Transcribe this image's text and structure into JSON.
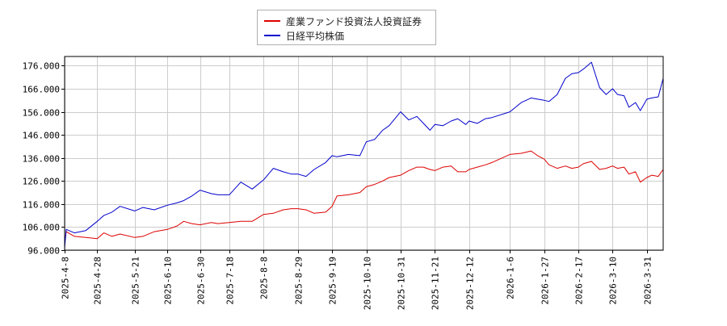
{
  "chart_data": {
    "type": "line",
    "title": "",
    "xlabel": "",
    "ylabel": "",
    "ylim": [
      96000,
      180000
    ],
    "yticks": [
      "96.000",
      "106.000",
      "116.000",
      "126.000",
      "136.000",
      "146.000",
      "156.000",
      "166.000",
      "176.000"
    ],
    "ytick_values": [
      96000,
      106000,
      116000,
      126000,
      136000,
      146000,
      156000,
      166000,
      176000
    ],
    "xlim": [
      "2025-04-08",
      "2026-04-10"
    ],
    "xticks": [
      "2025-4-8",
      "2025-4-28",
      "2025-5-21",
      "2025-6-10",
      "2025-6-30",
      "2025-7-18",
      "2025-8-8",
      "2025-8-29",
      "2025-9-19",
      "2025-10-10",
      "2025-10-31",
      "2025-11-21",
      "2025-12-12",
      "2026-1-6",
      "2026-1-27",
      "2026-2-17",
      "2026-3-10",
      "2026-3-31"
    ],
    "xtick_dates": [
      "2025-04-08",
      "2025-04-28",
      "2025-05-21",
      "2025-06-10",
      "2025-06-30",
      "2025-07-18",
      "2025-08-08",
      "2025-08-29",
      "2025-09-19",
      "2025-10-10",
      "2025-10-31",
      "2025-11-21",
      "2025-12-12",
      "2026-01-06",
      "2026-01-27",
      "2026-02-17",
      "2026-03-10",
      "2026-03-31"
    ],
    "grid": true,
    "legend_position": "top-center",
    "series": [
      {
        "name": "産業ファンド投資法人投資証券",
        "color": "#dd0000",
        "points": [
          [
            "2025-04-08",
            99000
          ],
          [
            "2025-04-09",
            104000
          ],
          [
            "2025-04-14",
            102000
          ],
          [
            "2025-04-21",
            101500
          ],
          [
            "2025-04-28",
            101000
          ],
          [
            "2025-05-02",
            103500
          ],
          [
            "2025-05-07",
            102000
          ],
          [
            "2025-05-12",
            103000
          ],
          [
            "2025-05-21",
            101500
          ],
          [
            "2025-05-26",
            102000
          ],
          [
            "2025-06-02",
            104000
          ],
          [
            "2025-06-10",
            105000
          ],
          [
            "2025-06-16",
            106500
          ],
          [
            "2025-06-20",
            108500
          ],
          [
            "2025-06-25",
            107500
          ],
          [
            "2025-06-30",
            107000
          ],
          [
            "2025-07-07",
            108000
          ],
          [
            "2025-07-11",
            107500
          ],
          [
            "2025-07-18",
            108000
          ],
          [
            "2025-07-25",
            108500
          ],
          [
            "2025-08-01",
            108500
          ],
          [
            "2025-08-08",
            111500
          ],
          [
            "2025-08-14",
            112000
          ],
          [
            "2025-08-20",
            113500
          ],
          [
            "2025-08-25",
            114000
          ],
          [
            "2025-08-29",
            114000
          ],
          [
            "2025-09-03",
            113500
          ],
          [
            "2025-09-08",
            112000
          ],
          [
            "2025-09-15",
            112500
          ],
          [
            "2025-09-19",
            115000
          ],
          [
            "2025-09-22",
            119500
          ],
          [
            "2025-09-29",
            120000
          ],
          [
            "2025-10-06",
            121000
          ],
          [
            "2025-10-10",
            123500
          ],
          [
            "2025-10-15",
            124500
          ],
          [
            "2025-10-20",
            126000
          ],
          [
            "2025-10-24",
            127500
          ],
          [
            "2025-10-31",
            128500
          ],
          [
            "2025-11-05",
            130500
          ],
          [
            "2025-11-10",
            132000
          ],
          [
            "2025-11-14",
            132000
          ],
          [
            "2025-11-18",
            131000
          ],
          [
            "2025-11-21",
            130500
          ],
          [
            "2025-11-26",
            132000
          ],
          [
            "2025-12-01",
            132500
          ],
          [
            "2025-12-05",
            130000
          ],
          [
            "2025-12-10",
            130000
          ],
          [
            "2025-12-12",
            131000
          ],
          [
            "2025-12-17",
            132000
          ],
          [
            "2025-12-22",
            133000
          ],
          [
            "2025-12-26",
            134000
          ],
          [
            "2026-01-06",
            137500
          ],
          [
            "2026-01-13",
            138000
          ],
          [
            "2026-01-19",
            139000
          ],
          [
            "2026-01-23",
            137000
          ],
          [
            "2026-01-27",
            135500
          ],
          [
            "2026-01-30",
            133000
          ],
          [
            "2026-02-04",
            131500
          ],
          [
            "2026-02-09",
            132500
          ],
          [
            "2026-02-13",
            131500
          ],
          [
            "2026-02-17",
            132000
          ],
          [
            "2026-02-20",
            133500
          ],
          [
            "2026-02-25",
            134500
          ],
          [
            "2026-03-02",
            131000
          ],
          [
            "2026-03-06",
            131500
          ],
          [
            "2026-03-10",
            132500
          ],
          [
            "2026-03-13",
            131500
          ],
          [
            "2026-03-17",
            132000
          ],
          [
            "2026-03-20",
            129000
          ],
          [
            "2026-03-24",
            130000
          ],
          [
            "2026-03-27",
            125500
          ],
          [
            "2026-03-31",
            127500
          ],
          [
            "2026-04-03",
            128500
          ],
          [
            "2026-04-07",
            128000
          ],
          [
            "2026-04-10",
            131000
          ]
        ]
      },
      {
        "name": "日経平均株価",
        "color": "#0000cc",
        "points": [
          [
            "2025-04-08",
            97000
          ],
          [
            "2025-04-09",
            105000
          ],
          [
            "2025-04-14",
            103500
          ],
          [
            "2025-04-21",
            104500
          ],
          [
            "2025-04-28",
            108500
          ],
          [
            "2025-05-02",
            111000
          ],
          [
            "2025-05-07",
            112500
          ],
          [
            "2025-05-12",
            115000
          ],
          [
            "2025-05-21",
            113000
          ],
          [
            "2025-05-26",
            114500
          ],
          [
            "2025-06-02",
            113500
          ],
          [
            "2025-06-10",
            115500
          ],
          [
            "2025-06-16",
            116500
          ],
          [
            "2025-06-20",
            117500
          ],
          [
            "2025-06-25",
            119500
          ],
          [
            "2025-06-30",
            122000
          ],
          [
            "2025-07-07",
            120500
          ],
          [
            "2025-07-11",
            120000
          ],
          [
            "2025-07-18",
            120000
          ],
          [
            "2025-07-25",
            125500
          ],
          [
            "2025-08-01",
            122500
          ],
          [
            "2025-08-08",
            126500
          ],
          [
            "2025-08-14",
            131500
          ],
          [
            "2025-08-20",
            130000
          ],
          [
            "2025-08-25",
            129000
          ],
          [
            "2025-08-29",
            129000
          ],
          [
            "2025-09-03",
            128000
          ],
          [
            "2025-09-08",
            131000
          ],
          [
            "2025-09-15",
            134000
          ],
          [
            "2025-09-19",
            137000
          ],
          [
            "2025-09-22",
            136500
          ],
          [
            "2025-09-29",
            137500
          ],
          [
            "2025-10-06",
            137000
          ],
          [
            "2025-10-10",
            143000
          ],
          [
            "2025-10-15",
            144000
          ],
          [
            "2025-10-20",
            148000
          ],
          [
            "2025-10-24",
            150000
          ],
          [
            "2025-10-31",
            156000
          ],
          [
            "2025-11-05",
            152500
          ],
          [
            "2025-11-10",
            154000
          ],
          [
            "2025-11-14",
            151000
          ],
          [
            "2025-11-18",
            148000
          ],
          [
            "2025-11-21",
            150500
          ],
          [
            "2025-11-26",
            150000
          ],
          [
            "2025-12-01",
            152000
          ],
          [
            "2025-12-05",
            153000
          ],
          [
            "2025-12-10",
            150500
          ],
          [
            "2025-12-12",
            152000
          ],
          [
            "2025-12-17",
            151000
          ],
          [
            "2025-12-22",
            153000
          ],
          [
            "2025-12-26",
            153500
          ],
          [
            "2026-01-06",
            156000
          ],
          [
            "2026-01-13",
            160000
          ],
          [
            "2026-01-19",
            162000
          ],
          [
            "2026-01-23",
            161500
          ],
          [
            "2026-01-27",
            161000
          ],
          [
            "2026-01-30",
            160500
          ],
          [
            "2026-02-04",
            163500
          ],
          [
            "2026-02-09",
            170500
          ],
          [
            "2026-02-13",
            172500
          ],
          [
            "2026-02-17",
            173000
          ],
          [
            "2026-02-20",
            174500
          ],
          [
            "2026-02-25",
            177500
          ],
          [
            "2026-03-02",
            166500
          ],
          [
            "2026-03-06",
            163500
          ],
          [
            "2026-03-10",
            166000
          ],
          [
            "2026-03-13",
            163500
          ],
          [
            "2026-03-17",
            163000
          ],
          [
            "2026-03-20",
            158000
          ],
          [
            "2026-03-24",
            160000
          ],
          [
            "2026-03-27",
            156500
          ],
          [
            "2026-03-31",
            161500
          ],
          [
            "2026-04-03",
            162000
          ],
          [
            "2026-04-07",
            162500
          ],
          [
            "2026-04-10",
            170500
          ]
        ]
      }
    ]
  }
}
